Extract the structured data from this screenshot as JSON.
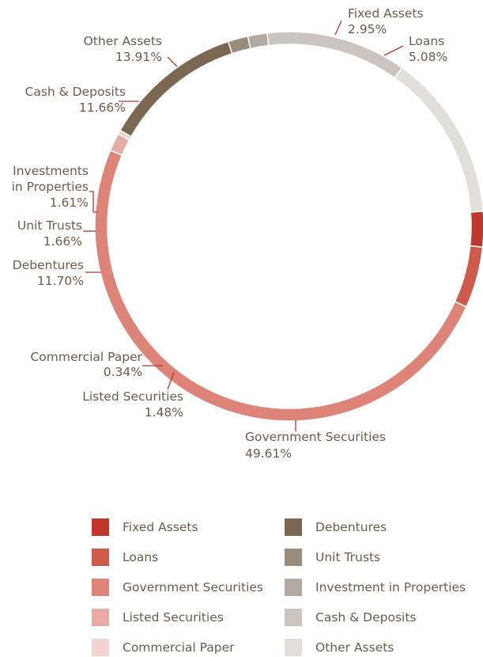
{
  "chart_data": {
    "type": "pie",
    "style": "donut",
    "title": "",
    "slices": [
      {
        "name": "Fixed Assets",
        "value": 2.95,
        "label": "2.95%",
        "color": "#c0362c"
      },
      {
        "name": "Loans",
        "value": 5.08,
        "label": "5.08%",
        "color": "#cf5a4c"
      },
      {
        "name": "Government Securities",
        "value": 49.61,
        "label": "49.61%",
        "color": "#dd8377"
      },
      {
        "name": "Listed Securities",
        "value": 1.48,
        "label": "1.48%",
        "color": "#e8aaa4"
      },
      {
        "name": "Commercial Paper",
        "value": 0.34,
        "label": "0.34%",
        "color": "#f2d3cf"
      },
      {
        "name": "Debentures",
        "value": 11.7,
        "label": "11.70%",
        "color": "#7b6852"
      },
      {
        "name": "Unit Trusts",
        "value": 1.66,
        "label": "1.66%",
        "color": "#9a8c7c"
      },
      {
        "name": "Investments in Properties",
        "value": 1.61,
        "label": "1.61%",
        "color": "#b2aaa2"
      },
      {
        "name": "Cash & Deposits",
        "value": 11.66,
        "label": "11.66%",
        "color": "#cbc4bf"
      },
      {
        "name": "Other Assets",
        "value": 13.91,
        "label": "13.91%",
        "color": "#e2dfda"
      }
    ],
    "legend": {
      "placement": "bottom",
      "columns": [
        [
          "Fixed Assets",
          "Loans",
          "Government Securities",
          "Listed Securities",
          "Commercial Paper"
        ],
        [
          "Debentures",
          "Unit Trusts",
          "Investment in Properties",
          "Cash & Deposits",
          "Other Assets"
        ]
      ]
    }
  }
}
